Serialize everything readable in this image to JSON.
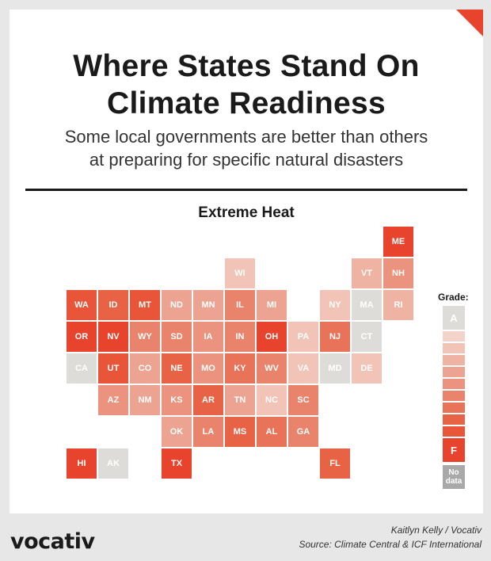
{
  "title_line1": "Where States Stand On",
  "title_line2": "Climate Readiness",
  "subtitle_line1": "Some local governments are better than others",
  "subtitle_line2": "at preparing for specific natural disasters",
  "brand": "vocativ",
  "credit_author": "Kaitlyn Kelly / Vocativ",
  "credit_source": "Source: Climate Central & ICF International",
  "colors": {
    "accent": "#e8432c",
    "grade_scale": [
      "#dedcd8",
      "#f4d3cb",
      "#f2c3b7",
      "#efb3a4",
      "#eda391",
      "#eb937e",
      "#e9836b",
      "#e87358",
      "#e86346",
      "#e85538",
      "#e8432c"
    ],
    "no_data": "#a9a9a9"
  },
  "chart_data": {
    "type": "heatmap",
    "title": "Extreme Heat",
    "legend_title": "Grade:",
    "legend_top_label": "A",
    "legend_bottom_label": "F",
    "legend_no_data_line1": "No",
    "legend_no_data_line2": "data",
    "grade_levels": 11,
    "states": [
      {
        "abbr": "ME",
        "col": 10,
        "row": 0,
        "level": 10
      },
      {
        "abbr": "WI",
        "col": 5,
        "row": 1,
        "level": 2
      },
      {
        "abbr": "VT",
        "col": 9,
        "row": 1,
        "level": 3
      },
      {
        "abbr": "NH",
        "col": 10,
        "row": 1,
        "level": 5
      },
      {
        "abbr": "WA",
        "col": 0,
        "row": 2,
        "level": 9
      },
      {
        "abbr": "ID",
        "col": 1,
        "row": 2,
        "level": 8
      },
      {
        "abbr": "MT",
        "col": 2,
        "row": 2,
        "level": 9
      },
      {
        "abbr": "ND",
        "col": 3,
        "row": 2,
        "level": 4
      },
      {
        "abbr": "MN",
        "col": 4,
        "row": 2,
        "level": 4
      },
      {
        "abbr": "IL",
        "col": 5,
        "row": 2,
        "level": 6
      },
      {
        "abbr": "MI",
        "col": 6,
        "row": 2,
        "level": 4
      },
      {
        "abbr": "NY",
        "col": 8,
        "row": 2,
        "level": 2
      },
      {
        "abbr": "MA",
        "col": 9,
        "row": 2,
        "level": 0
      },
      {
        "abbr": "RI",
        "col": 10,
        "row": 2,
        "level": 3
      },
      {
        "abbr": "OR",
        "col": 0,
        "row": 3,
        "level": 10
      },
      {
        "abbr": "NV",
        "col": 1,
        "row": 3,
        "level": 10
      },
      {
        "abbr": "WY",
        "col": 2,
        "row": 3,
        "level": 6
      },
      {
        "abbr": "SD",
        "col": 3,
        "row": 3,
        "level": 6
      },
      {
        "abbr": "IA",
        "col": 4,
        "row": 3,
        "level": 5
      },
      {
        "abbr": "IN",
        "col": 5,
        "row": 3,
        "level": 6
      },
      {
        "abbr": "OH",
        "col": 6,
        "row": 3,
        "level": 10
      },
      {
        "abbr": "PA",
        "col": 7,
        "row": 3,
        "level": 2
      },
      {
        "abbr": "NJ",
        "col": 8,
        "row": 3,
        "level": 7
      },
      {
        "abbr": "CT",
        "col": 9,
        "row": 3,
        "level": 0
      },
      {
        "abbr": "CA",
        "col": 0,
        "row": 4,
        "level": 0
      },
      {
        "abbr": "UT",
        "col": 1,
        "row": 4,
        "level": 9
      },
      {
        "abbr": "CO",
        "col": 2,
        "row": 4,
        "level": 4
      },
      {
        "abbr": "NE",
        "col": 3,
        "row": 4,
        "level": 8
      },
      {
        "abbr": "MO",
        "col": 4,
        "row": 4,
        "level": 5
      },
      {
        "abbr": "KY",
        "col": 5,
        "row": 4,
        "level": 7
      },
      {
        "abbr": "WV",
        "col": 6,
        "row": 4,
        "level": 6
      },
      {
        "abbr": "VA",
        "col": 7,
        "row": 4,
        "level": 2
      },
      {
        "abbr": "MD",
        "col": 8,
        "row": 4,
        "level": 0
      },
      {
        "abbr": "DE",
        "col": 9,
        "row": 4,
        "level": 2
      },
      {
        "abbr": "AZ",
        "col": 1,
        "row": 5,
        "level": 5
      },
      {
        "abbr": "NM",
        "col": 2,
        "row": 5,
        "level": 4
      },
      {
        "abbr": "KS",
        "col": 3,
        "row": 5,
        "level": 5
      },
      {
        "abbr": "AR",
        "col": 4,
        "row": 5,
        "level": 8
      },
      {
        "abbr": "TN",
        "col": 5,
        "row": 5,
        "level": 4
      },
      {
        "abbr": "NC",
        "col": 6,
        "row": 5,
        "level": 2
      },
      {
        "abbr": "SC",
        "col": 7,
        "row": 5,
        "level": 6
      },
      {
        "abbr": "OK",
        "col": 3,
        "row": 6,
        "level": 4
      },
      {
        "abbr": "LA",
        "col": 4,
        "row": 6,
        "level": 6
      },
      {
        "abbr": "MS",
        "col": 5,
        "row": 6,
        "level": 8
      },
      {
        "abbr": "AL",
        "col": 6,
        "row": 6,
        "level": 7
      },
      {
        "abbr": "GA",
        "col": 7,
        "row": 6,
        "level": 6
      },
      {
        "abbr": "HI",
        "col": 0,
        "row": 7,
        "level": 10
      },
      {
        "abbr": "AK",
        "col": 1,
        "row": 7,
        "level": 0
      },
      {
        "abbr": "TX",
        "col": 3,
        "row": 7,
        "level": 10
      },
      {
        "abbr": "FL",
        "col": 8,
        "row": 7,
        "level": 8
      }
    ]
  }
}
